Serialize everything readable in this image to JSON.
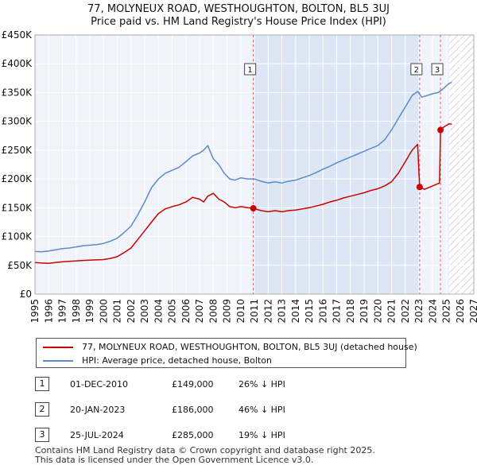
{
  "chart_data": {
    "type": "line",
    "title": "77, MOLYNEUX ROAD, WESTHOUGHTON, BOLTON, BL5 3UJ",
    "subtitle": "Price paid vs. HM Land Registry's House Price Index (HPI)",
    "xlabel": "",
    "ylabel": "",
    "xlim": [
      1995,
      2027
    ],
    "ylim": [
      0,
      450000
    ],
    "y_ticks": [
      {
        "value": 0,
        "label": "£0"
      },
      {
        "value": 50000,
        "label": "£50K"
      },
      {
        "value": 100000,
        "label": "£100K"
      },
      {
        "value": 150000,
        "label": "£150K"
      },
      {
        "value": 200000,
        "label": "£200K"
      },
      {
        "value": 250000,
        "label": "£250K"
      },
      {
        "value": 300000,
        "label": "£300K"
      },
      {
        "value": 350000,
        "label": "£350K"
      },
      {
        "value": 400000,
        "label": "£400K"
      },
      {
        "value": 450000,
        "label": "£450K"
      }
    ],
    "x_ticks": [
      "1995",
      "1996",
      "1997",
      "1998",
      "1999",
      "2000",
      "2001",
      "2002",
      "2003",
      "2004",
      "2005",
      "2006",
      "2007",
      "2008",
      "2009",
      "2010",
      "2011",
      "2012",
      "2013",
      "2014",
      "2015",
      "2016",
      "2017",
      "2018",
      "2019",
      "2020",
      "2021",
      "2022",
      "2023",
      "2024",
      "2025",
      "2026",
      "2027"
    ],
    "grid": true,
    "forecast_hatch_from": 2025.2,
    "shaded_band": [
      2010.92,
      2023.05
    ],
    "series": [
      {
        "name": "77, MOLYNEUX ROAD, WESTHOUGHTON, BOLTON, BL5 3UJ (detached house)",
        "color": "#cc0000",
        "x": [
          1995.0,
          1995.5,
          1996.0,
          1996.5,
          1997.0,
          1997.5,
          1998.0,
          1998.5,
          1999.0,
          1999.5,
          2000.0,
          2000.5,
          2001.0,
          2001.5,
          2002.0,
          2002.5,
          2003.0,
          2003.5,
          2004.0,
          2004.5,
          2005.0,
          2005.5,
          2006.0,
          2006.5,
          2007.0,
          2007.3,
          2007.6,
          2008.0,
          2008.4,
          2008.8,
          2009.2,
          2009.6,
          2010.0,
          2010.5,
          2010.92,
          2011.5,
          2012.0,
          2012.5,
          2013.0,
          2013.5,
          2014.0,
          2014.5,
          2015.0,
          2015.5,
          2016.0,
          2016.5,
          2017.0,
          2017.5,
          2018.0,
          2018.5,
          2019.0,
          2019.5,
          2020.0,
          2020.5,
          2021.0,
          2021.5,
          2022.0,
          2022.5,
          2022.9,
          2023.05,
          2023.4,
          2023.8,
          2024.2,
          2024.5,
          2024.57,
          2024.8,
          2025.0,
          2025.2,
          2025.4
        ],
        "y": [
          55000,
          54000,
          53500,
          55000,
          56000,
          57000,
          57500,
          58500,
          59000,
          59500,
          60000,
          62000,
          65000,
          72000,
          80000,
          95000,
          110000,
          125000,
          140000,
          148000,
          152000,
          155000,
          160000,
          168000,
          165000,
          160000,
          170000,
          175000,
          165000,
          160000,
          152000,
          150000,
          152000,
          150000,
          149000,
          145000,
          143000,
          145000,
          143000,
          145000,
          146000,
          148000,
          150000,
          153000,
          156000,
          160000,
          163000,
          167000,
          170000,
          173000,
          176000,
          180000,
          183000,
          188000,
          195000,
          210000,
          230000,
          250000,
          260000,
          186000,
          182000,
          186000,
          190000,
          193000,
          285000,
          290000,
          293000,
          296000,
          295000
        ]
      },
      {
        "name": "HPI: Average price, detached house, Bolton",
        "color": "#5b8bc9",
        "x": [
          1995.0,
          1995.5,
          1996.0,
          1996.5,
          1997.0,
          1997.5,
          1998.0,
          1998.5,
          1999.0,
          1999.5,
          2000.0,
          2000.5,
          2001.0,
          2001.5,
          2002.0,
          2002.5,
          2003.0,
          2003.5,
          2004.0,
          2004.5,
          2005.0,
          2005.5,
          2006.0,
          2006.5,
          2007.0,
          2007.3,
          2007.6,
          2008.0,
          2008.4,
          2008.8,
          2009.2,
          2009.6,
          2010.0,
          2010.5,
          2011.0,
          2011.5,
          2012.0,
          2012.5,
          2013.0,
          2013.5,
          2014.0,
          2014.5,
          2015.0,
          2015.5,
          2016.0,
          2016.5,
          2017.0,
          2017.5,
          2018.0,
          2018.5,
          2019.0,
          2019.5,
          2020.0,
          2020.5,
          2021.0,
          2021.5,
          2022.0,
          2022.5,
          2022.9,
          2023.2,
          2023.6,
          2024.0,
          2024.4,
          2024.8,
          2025.0,
          2025.2,
          2025.4
        ],
        "y": [
          74000,
          73500,
          75000,
          77000,
          79000,
          80000,
          82000,
          84000,
          85000,
          86000,
          88000,
          92000,
          97000,
          107000,
          118000,
          138000,
          160000,
          185000,
          200000,
          210000,
          215000,
          220000,
          230000,
          240000,
          245000,
          250000,
          258000,
          235000,
          225000,
          210000,
          200000,
          198000,
          202000,
          200000,
          200000,
          196000,
          193000,
          195000,
          193000,
          196000,
          198000,
          202000,
          206000,
          211000,
          217000,
          222000,
          228000,
          233000,
          238000,
          243000,
          248000,
          253000,
          258000,
          268000,
          285000,
          305000,
          325000,
          345000,
          352000,
          342000,
          345000,
          348000,
          350000,
          357000,
          362000,
          366000,
          368000
        ]
      }
    ],
    "markers": [
      {
        "label": "1",
        "x": 2010.92,
        "price": 149000
      },
      {
        "label": "2",
        "x": 2023.05,
        "price": 186000
      },
      {
        "label": "3",
        "x": 2024.57,
        "price": 285000
      }
    ],
    "annotations": [
      {
        "label": "1",
        "date": "01-DEC-2010",
        "price": "£149,000",
        "change": "26% ↓ HPI"
      },
      {
        "label": "2",
        "date": "20-JAN-2023",
        "price": "£186,000",
        "change": "46% ↓ HPI"
      },
      {
        "label": "3",
        "date": "25-JUL-2024",
        "price": "£285,000",
        "change": "19% ↓ HPI"
      }
    ]
  },
  "legend": {
    "property_label": "77, MOLYNEUX ROAD, WESTHOUGHTON, BOLTON, BL5 3UJ (detached house)",
    "hpi_label": "HPI: Average price, detached house, Bolton"
  },
  "footer": {
    "line1": "Contains HM Land Registry data © Crown copyright and database right 2025.",
    "line2": "This data is licensed under the Open Government Licence v3.0."
  }
}
